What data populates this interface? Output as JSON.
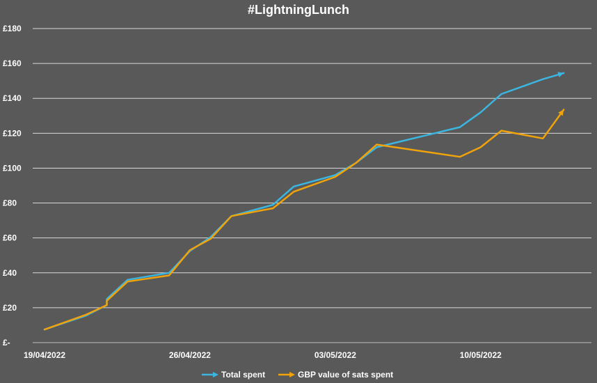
{
  "chart_data": {
    "type": "line",
    "title": "#LightningLunch",
    "xlabel": "",
    "ylabel": "",
    "x_ticks": [
      "19/04/2022",
      "26/04/2022",
      "03/05/2022",
      "10/05/2022"
    ],
    "y_ticks": [
      "£-",
      "£20",
      "£40",
      "£60",
      "£80",
      "£100",
      "£120",
      "£140",
      "£160",
      "£180"
    ],
    "ylim": [
      0,
      180
    ],
    "xlim": [
      "2022-04-19",
      "2022-05-15"
    ],
    "grid": true,
    "legend_position": "bottom",
    "series": [
      {
        "name": "Total spent",
        "color": "#3bb6e0",
        "points": [
          {
            "x": "2022-04-19",
            "y": 7.5
          },
          {
            "x": "2022-04-21",
            "y": 15.5
          },
          {
            "x": "2022-04-22",
            "y": 21.5
          },
          {
            "x": "2022-04-22",
            "y": 25
          },
          {
            "x": "2022-04-23",
            "y": 36
          },
          {
            "x": "2022-04-25",
            "y": 40
          },
          {
            "x": "2022-04-26",
            "y": 52.5
          },
          {
            "x": "2022-04-27",
            "y": 60.5
          },
          {
            "x": "2022-04-28",
            "y": 72.5
          },
          {
            "x": "2022-04-30",
            "y": 79
          },
          {
            "x": "2022-05-01",
            "y": 89.5
          },
          {
            "x": "2022-05-03",
            "y": 96
          },
          {
            "x": "2022-05-04",
            "y": 103
          },
          {
            "x": "2022-05-05",
            "y": 112
          },
          {
            "x": "2022-05-09",
            "y": 123.5
          },
          {
            "x": "2022-05-10",
            "y": 132
          },
          {
            "x": "2022-05-11",
            "y": 142.5
          },
          {
            "x": "2022-05-13",
            "y": 151
          },
          {
            "x": "2022-05-14",
            "y": 154.5
          }
        ]
      },
      {
        "name": "GBP value of sats spent",
        "color": "#f0a30a",
        "points": [
          {
            "x": "2022-04-19",
            "y": 7.5
          },
          {
            "x": "2022-04-21",
            "y": 16
          },
          {
            "x": "2022-04-22",
            "y": 21.5
          },
          {
            "x": "2022-04-22",
            "y": 24
          },
          {
            "x": "2022-04-23",
            "y": 35
          },
          {
            "x": "2022-04-25",
            "y": 38.5
          },
          {
            "x": "2022-04-26",
            "y": 53
          },
          {
            "x": "2022-04-27",
            "y": 59.5
          },
          {
            "x": "2022-04-28",
            "y": 72.5
          },
          {
            "x": "2022-04-30",
            "y": 77
          },
          {
            "x": "2022-05-01",
            "y": 86.5
          },
          {
            "x": "2022-05-03",
            "y": 95
          },
          {
            "x": "2022-05-04",
            "y": 103
          },
          {
            "x": "2022-05-05",
            "y": 113.5
          },
          {
            "x": "2022-05-09",
            "y": 106.5
          },
          {
            "x": "2022-05-10",
            "y": 112
          },
          {
            "x": "2022-05-11",
            "y": 121.5
          },
          {
            "x": "2022-05-13",
            "y": 117
          },
          {
            "x": "2022-05-14",
            "y": 133.5
          }
        ]
      }
    ]
  }
}
